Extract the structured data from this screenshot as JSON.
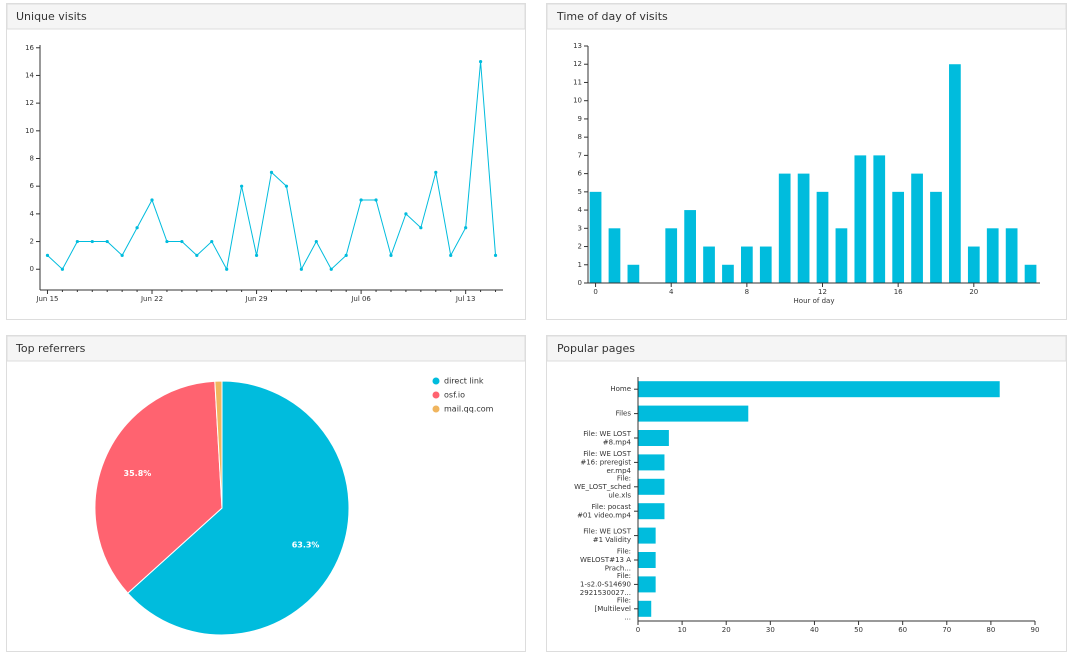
{
  "chart_data": [
    {
      "type": "line",
      "title": "Unique visits",
      "categories": [
        "Jun 15",
        null,
        null,
        null,
        null,
        null,
        null,
        "Jun 22",
        null,
        null,
        null,
        null,
        null,
        null,
        "Jun 29",
        null,
        null,
        null,
        null,
        null,
        null,
        "Jul 06",
        null,
        null,
        null,
        null,
        null,
        null,
        "Jul 13",
        null,
        null
      ],
      "values": [
        1,
        0,
        2,
        2,
        2,
        1,
        3,
        5,
        2,
        2,
        1,
        2,
        0,
        6,
        1,
        7,
        6,
        0,
        2,
        0,
        1,
        5,
        5,
        1,
        4,
        3,
        7,
        1,
        3,
        15,
        1
      ],
      "color": "#00bcdd",
      "ylim": [
        -1.5,
        16.2
      ],
      "yticks": [
        0,
        2,
        4,
        6,
        8,
        10,
        12,
        14,
        16
      ]
    },
    {
      "type": "bar",
      "title": "Time of day of visits",
      "x": [
        0,
        1,
        2,
        3,
        4,
        5,
        6,
        7,
        8,
        9,
        10,
        11,
        12,
        13,
        14,
        15,
        16,
        17,
        18,
        19,
        20,
        21,
        22,
        23
      ],
      "values": [
        5,
        3,
        1,
        0,
        3,
        4,
        2,
        1,
        2,
        2,
        6,
        6,
        5,
        3,
        7,
        7,
        5,
        6,
        5,
        12,
        2,
        3,
        3,
        1
      ],
      "color": "#00bcdd",
      "xlim": [
        -0.4,
        23.5
      ],
      "xticks": [
        0,
        4,
        8,
        12,
        16,
        20
      ],
      "xlabel": "Hour of day",
      "ylim": [
        0,
        13
      ],
      "yticks": [
        0,
        1,
        2,
        3,
        4,
        5,
        6,
        7,
        8,
        9,
        10,
        11,
        12,
        13
      ]
    },
    {
      "type": "pie",
      "title": "Top referrers",
      "labels": [
        "direct link",
        "osf.io",
        "mail.qq.com"
      ],
      "values": [
        63.3,
        35.8,
        0.9
      ],
      "value_labels": [
        "63.3%",
        "35.8%",
        null
      ],
      "colors": [
        "#00bcdd",
        "#ff6370",
        "#f0b55e"
      ],
      "legend": "upper right"
    },
    {
      "type": "hbar",
      "title": "Popular pages",
      "categories": [
        [
          "Home"
        ],
        [
          "Files"
        ],
        [
          "File: WE LOST",
          "#8.mp4"
        ],
        [
          "File: WE LOST",
          "#16:  preregist",
          "er.mp4"
        ],
        [
          "File:",
          "WE_LOST_sched",
          "ule.xls"
        ],
        [
          "File: pocast",
          "#01 video.mp4"
        ],
        [
          "File: WE LOST",
          "#1 Validity"
        ],
        [
          "File:",
          "WELOST#13 A",
          "Prach..."
        ],
        [
          "File:",
          "1-s2.0-S14690",
          "2921530027..."
        ],
        [
          "File:",
          "[Multilevel",
          "..."
        ]
      ],
      "values": [
        82,
        25,
        7,
        6,
        6,
        6,
        4,
        4,
        4,
        3
      ],
      "color": "#00bcdd",
      "xlim": [
        0,
        90
      ],
      "xticks": [
        0,
        10,
        20,
        30,
        40,
        50,
        60,
        70,
        80,
        90
      ]
    }
  ]
}
